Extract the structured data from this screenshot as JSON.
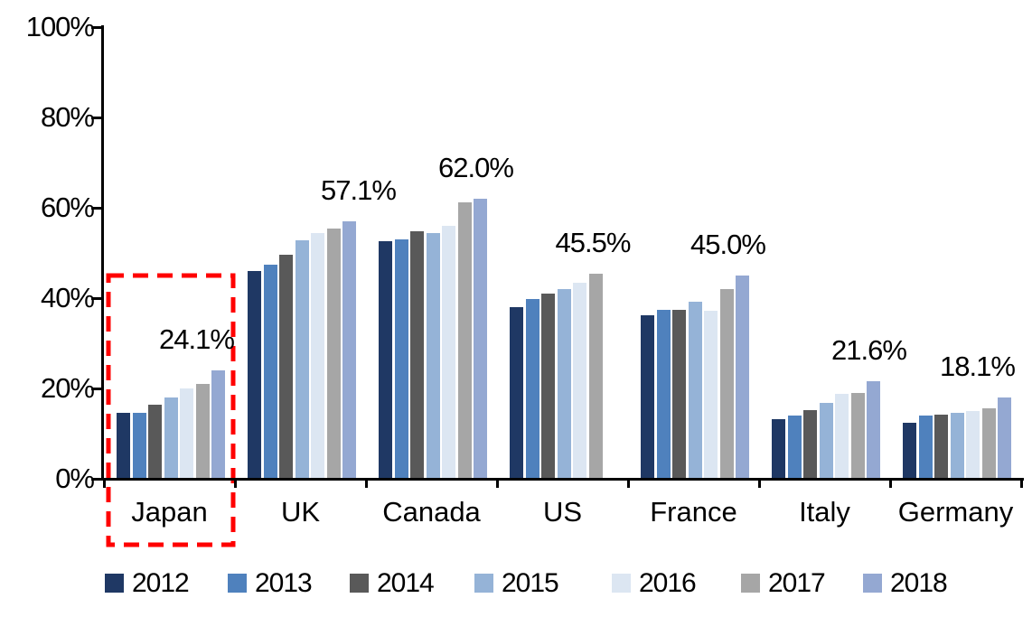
{
  "chart_data": {
    "type": "bar",
    "categories": [
      "Japan",
      "UK",
      "Canada",
      "US",
      "France",
      "Italy",
      "Germany"
    ],
    "series": [
      {
        "name": "2012",
        "color": "#1F3864",
        "values": [
          14.7,
          46.1,
          52.7,
          38.1,
          36.3,
          13.2,
          12.5
        ]
      },
      {
        "name": "2013",
        "color": "#4F81BD",
        "values": [
          14.7,
          47.5,
          53.1,
          39.8,
          37.5,
          14.1,
          14.0
        ]
      },
      {
        "name": "2014",
        "color": "#595959",
        "values": [
          16.5,
          49.6,
          54.8,
          41.1,
          37.5,
          15.3,
          14.3
        ]
      },
      {
        "name": "2015",
        "color": "#95B3D7",
        "values": [
          18.0,
          52.8,
          54.5,
          42.0,
          39.2,
          16.8,
          14.7
        ]
      },
      {
        "name": "2016",
        "color": "#DCE6F2",
        "values": [
          20.0,
          54.5,
          56.0,
          43.5,
          37.2,
          18.9,
          15.1
        ]
      },
      {
        "name": "2017",
        "color": "#A6A6A6",
        "values": [
          21.1,
          55.5,
          61.3,
          45.5,
          42.1,
          19.1,
          15.7
        ]
      },
      {
        "name": "2018",
        "color": "#94A8D2",
        "values": [
          24.1,
          57.1,
          62.0,
          null,
          45.0,
          21.6,
          18.1
        ]
      }
    ],
    "data_labels": [
      {
        "category": "Japan",
        "text": "24.1%"
      },
      {
        "category": "UK",
        "text": "57.1%"
      },
      {
        "category": "Canada",
        "text": "62.0%"
      },
      {
        "category": "US",
        "text": "45.5%"
      },
      {
        "category": "France",
        "text": "45.0%"
      },
      {
        "category": "Italy",
        "text": "21.6%"
      },
      {
        "category": "Germany",
        "text": "18.1%"
      }
    ],
    "y_axis": {
      "tick_labels": [
        "0%",
        "20%",
        "40%",
        "60%",
        "80%",
        "100%"
      ],
      "min": 0,
      "max": 100,
      "step": 20
    },
    "legend": [
      "2012",
      "2013",
      "2014",
      "2015",
      "2016",
      "2017",
      "2018"
    ],
    "legend_position": "bottom",
    "grid": false,
    "highlight": {
      "category": "Japan",
      "shape": "dashed-rectangle",
      "color": "#FF0000"
    },
    "axis_color": "#000000",
    "background_color": "#FFFFFF",
    "text_color": "#000000"
  }
}
